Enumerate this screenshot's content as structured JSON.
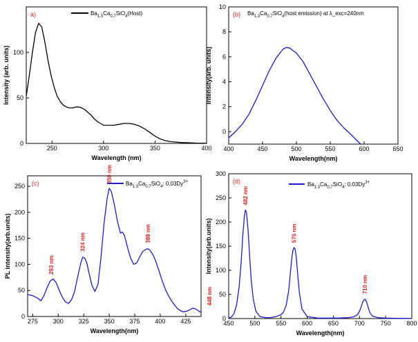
{
  "colors": {
    "panel_a": "#000000",
    "panel_b": "#1a1ad0",
    "panel_c": "#1a1ad0",
    "panel_d": "#1a1ad0",
    "panel_label_red": "#e02020",
    "peak_label": "#e02020"
  },
  "chart_data": [
    {
      "type": "line",
      "panel_label": "a)",
      "xlabel": "Wavelength (nm)",
      "ylabel": "Intensity (arb. units)",
      "xlim": [
        225,
        400
      ],
      "ylim": [
        0,
        150
      ],
      "xticks": [
        250,
        300,
        350,
        400
      ],
      "yticks": [
        0,
        50,
        100
      ],
      "legend": "top-center",
      "series": [
        {
          "name": "Ba1.3Ca0.7SiO4(Host)",
          "x": [
            225,
            228,
            231,
            234,
            237,
            240,
            243,
            246,
            249,
            252,
            255,
            258,
            261,
            264,
            267,
            270,
            273,
            276,
            279,
            282,
            285,
            288,
            291,
            294,
            297,
            300,
            305,
            310,
            315,
            320,
            325,
            330,
            335,
            340,
            345,
            350,
            355,
            360,
            365,
            370,
            375,
            380,
            385,
            390,
            395,
            400
          ],
          "values": [
            52,
            75,
            100,
            122,
            132,
            128,
            112,
            92,
            75,
            62,
            52,
            46,
            42,
            40,
            39,
            39,
            40,
            40,
            39,
            37,
            34,
            31,
            27,
            24,
            22,
            20,
            20,
            20,
            21,
            22,
            22,
            21,
            19,
            16,
            12,
            8,
            5,
            3,
            2,
            1.5,
            1,
            0.8,
            0.6,
            0.4,
            0.3,
            0.2
          ]
        }
      ]
    },
    {
      "type": "line",
      "panel_label": "(b)",
      "xlabel": "Wavelength(nm)",
      "ylabel": "Intensity(arb. units)",
      "xlim": [
        400,
        650
      ],
      "ylim": [
        -1,
        10
      ],
      "xticks": [
        400,
        450,
        500,
        550,
        600,
        650
      ],
      "yticks": [
        0,
        2,
        4,
        6,
        8,
        10
      ],
      "legend": "top-center",
      "series": [
        {
          "name": "Ba1.3Ca0.7SiO4(host emission) at λ_exc=240nm",
          "x": [
            400,
            410,
            420,
            430,
            440,
            450,
            460,
            470,
            480,
            485,
            490,
            500,
            510,
            520,
            530,
            540,
            550,
            560,
            570,
            580,
            590,
            595
          ],
          "values": [
            -0.5,
            0.0,
            0.6,
            1.4,
            2.5,
            3.7,
            4.9,
            5.9,
            6.6,
            6.75,
            6.7,
            6.3,
            5.6,
            4.6,
            3.6,
            2.6,
            1.7,
            0.9,
            0.3,
            -0.2,
            -0.75,
            -1.0
          ]
        }
      ]
    },
    {
      "type": "line",
      "panel_label": "(c)",
      "xlabel": "Wavelength(nm)",
      "ylabel": "PL intensity(arb.units)",
      "xlim": [
        270,
        440
      ],
      "ylim": [
        0,
        270
      ],
      "xticks": [
        275,
        300,
        325,
        350,
        375,
        400,
        425
      ],
      "yticks": [
        0,
        50,
        100,
        150,
        200,
        250
      ],
      "legend": "top-center",
      "annotations": [
        "293 nm",
        "324 nm",
        "350 nm",
        "388 nm",
        "448 nm"
      ],
      "series": [
        {
          "name": "Ba1.3Ca0.7SiO4: 0.03Dy3+",
          "x": [
            270,
            275,
            280,
            283,
            286,
            289,
            292,
            295,
            298,
            301,
            304,
            307,
            310,
            313,
            316,
            319,
            322,
            324,
            326,
            328,
            330,
            333,
            336,
            339,
            342,
            345,
            348,
            350,
            352,
            355,
            358,
            361,
            363,
            365,
            368,
            371,
            374,
            377,
            380,
            383,
            386,
            388,
            390,
            393,
            396,
            399,
            402,
            405,
            408,
            411,
            414,
            417,
            420,
            423,
            426,
            429,
            432,
            435,
            438,
            440
          ],
          "values": [
            42,
            40,
            35,
            30,
            40,
            55,
            68,
            72,
            65,
            50,
            37,
            28,
            25,
            32,
            48,
            75,
            102,
            114,
            112,
            103,
            85,
            60,
            48,
            62,
            115,
            180,
            228,
            246,
            240,
            215,
            183,
            160,
            162,
            155,
            132,
            112,
            100,
            103,
            115,
            125,
            129,
            130,
            127,
            118,
            104,
            86,
            68,
            52,
            40,
            30,
            22,
            15,
            11,
            9,
            10,
            13,
            16,
            14,
            10,
            8
          ]
        }
      ]
    },
    {
      "type": "line",
      "panel_label": "(d)",
      "xlabel": "Wavelength(nm)",
      "ylabel": "Intensity(arb.units)",
      "xlim": [
        450,
        800
      ],
      "ylim": [
        0,
        300
      ],
      "xticks": [
        450,
        500,
        550,
        600,
        650,
        700,
        750,
        800
      ],
      "yticks": [
        0,
        50,
        100,
        150,
        200,
        250,
        300
      ],
      "legend": "top-center",
      "annotations": [
        "482 nm",
        "575 nm",
        "710 nm"
      ],
      "series": [
        {
          "name": "Ba1.3Ca0.7SiO4: 0.03Dy3+",
          "x": [
            450,
            455,
            460,
            465,
            470,
            474,
            477,
            480,
            482,
            484,
            487,
            490,
            493,
            497,
            502,
            510,
            520,
            530,
            540,
            550,
            555,
            560,
            565,
            568,
            571,
            573,
            575,
            577,
            579,
            582,
            585,
            590,
            600,
            620,
            640,
            660,
            680,
            690,
            696,
            700,
            703,
            706,
            708,
            710,
            712,
            714,
            717,
            720,
            725,
            735,
            750,
            770,
            800
          ],
          "values": [
            1,
            3,
            10,
            28,
            65,
            120,
            172,
            212,
            225,
            220,
            185,
            130,
            80,
            40,
            15,
            4,
            2,
            2,
            4,
            8,
            14,
            28,
            60,
            95,
            128,
            142,
            147,
            144,
            128,
            92,
            55,
            20,
            4,
            1,
            1,
            1,
            2,
            4,
            8,
            15,
            24,
            33,
            38,
            40,
            38,
            33,
            22,
            12,
            5,
            2,
            1,
            0.5,
            0.3
          ]
        }
      ]
    }
  ],
  "labels": {
    "a_sub_1": "1.3",
    "a_sub_2": "0.7",
    "a_sub_3": "4",
    "b_sub_1": "1.3",
    "b_sub_2": "0.7",
    "b_sub_3": "4",
    "c_sub_1": "1.3",
    "c_sub_2": "0.7",
    "c_sub_3": "4",
    "c_sup": "3+",
    "d_sub_1": "1.3",
    "d_sub_2": "0.7",
    "d_sub_3": "4",
    "d_sup": "3+",
    "a_leg_ba": "Ba",
    "a_leg_ca": "Ca",
    "a_leg_si": "SiO",
    "a_leg_tail": "(Host)",
    "b_leg_ba": "Ba",
    "b_leg_ca": "Ca",
    "b_leg_si": "SiO",
    "b_leg_tail": "(host emission) at λ_exc=240nm",
    "c_leg_ba": "Ba",
    "c_leg_ca": "Ca",
    "c_leg_si": "SiO",
    "c_leg_tail": ": 0.03Dy",
    "d_leg_ba": "Ba",
    "d_leg_ca": "Ca",
    "d_leg_si": "SiO",
    "d_leg_tail": ": 0.03Dy"
  }
}
